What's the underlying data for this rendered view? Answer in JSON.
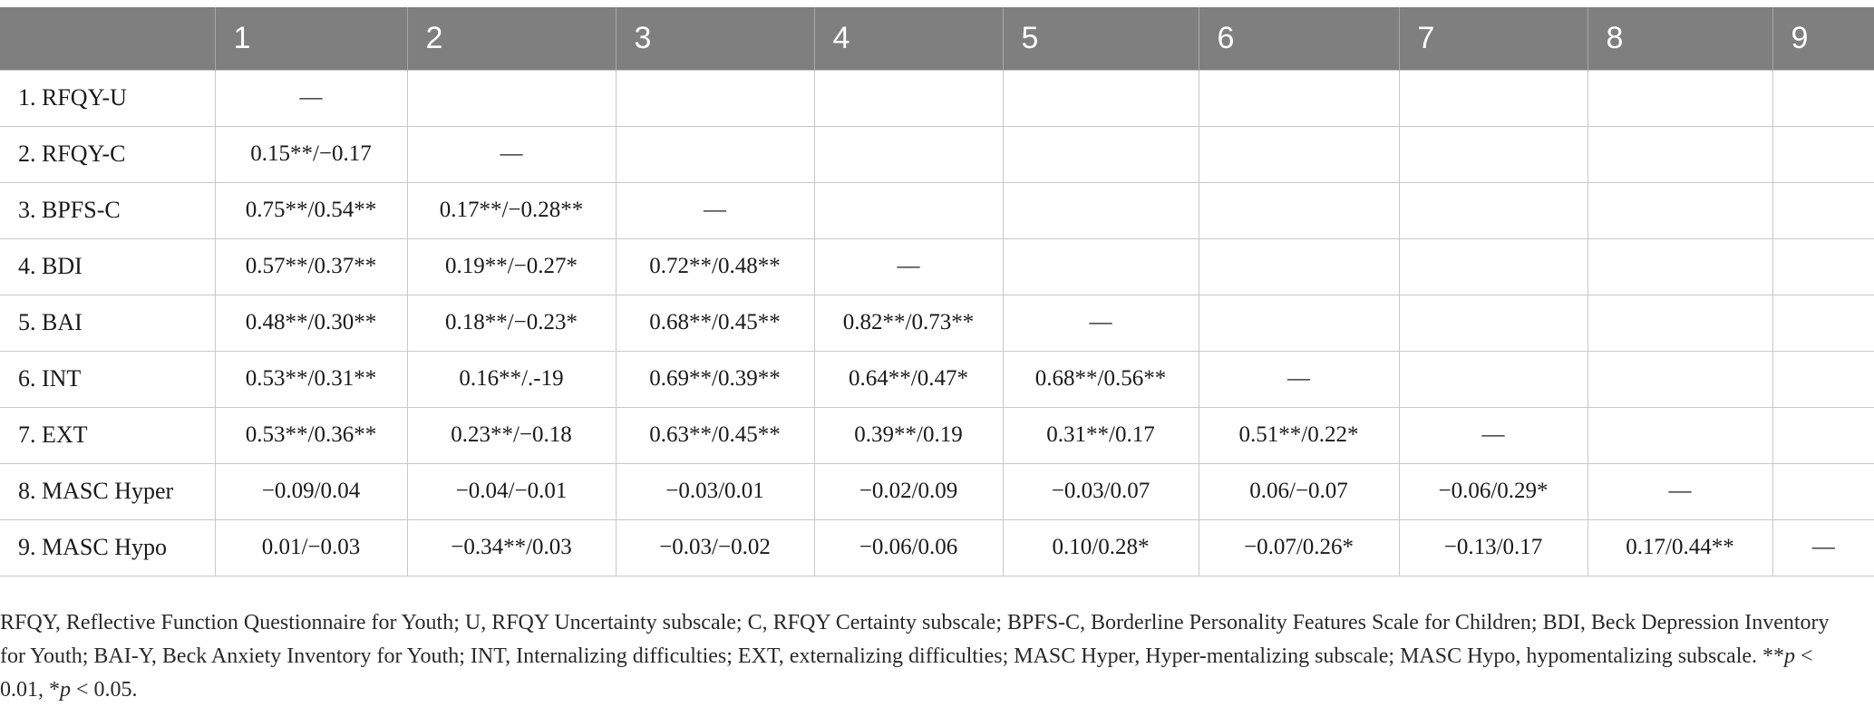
{
  "table": {
    "headers": [
      "",
      "1",
      "2",
      "3",
      "4",
      "5",
      "6",
      "7",
      "8",
      "9"
    ],
    "rows": [
      {
        "label": "1. RFQY-U",
        "cells": [
          "—",
          "",
          "",
          "",
          "",
          "",
          "",
          "",
          ""
        ]
      },
      {
        "label": "2. RFQY-C",
        "cells": [
          "0.15**/−0.17",
          "—",
          "",
          "",
          "",
          "",
          "",
          "",
          ""
        ]
      },
      {
        "label": "3. BPFS-C",
        "cells": [
          "0.75**/0.54**",
          "0.17**/−0.28**",
          "—",
          "",
          "",
          "",
          "",
          "",
          ""
        ]
      },
      {
        "label": "4. BDI",
        "cells": [
          "0.57**/0.37**",
          "0.19**/−0.27*",
          "0.72**/0.48**",
          "—",
          "",
          "",
          "",
          "",
          ""
        ]
      },
      {
        "label": "5. BAI",
        "cells": [
          "0.48**/0.30**",
          "0.18**/−0.23*",
          "0.68**/0.45**",
          "0.82**/0.73**",
          "—",
          "",
          "",
          "",
          ""
        ]
      },
      {
        "label": "6. INT",
        "cells": [
          "0.53**/0.31**",
          "0.16**/.-19",
          "0.69**/0.39**",
          "0.64**/0.47*",
          "0.68**/0.56**",
          "—",
          "",
          "",
          ""
        ]
      },
      {
        "label": "7. EXT",
        "cells": [
          "0.53**/0.36**",
          "0.23**/−0.18",
          "0.63**/0.45**",
          "0.39**/0.19",
          "0.31**/0.17",
          "0.51**/0.22*",
          "—",
          "",
          ""
        ]
      },
      {
        "label": "8. MASC Hyper",
        "cells": [
          "−0.09/0.04",
          "−0.04/−0.01",
          "−0.03/0.01",
          "−0.02/0.09",
          "−0.03/0.07",
          "0.06/−0.07",
          "−0.06/0.29*",
          "—",
          ""
        ]
      },
      {
        "label": "9. MASC Hypo",
        "cells": [
          "0.01/−0.03",
          "−0.34**/0.03",
          "−0.03/−0.02",
          "−0.06/0.06",
          "0.10/0.28*",
          "−0.07/0.26*",
          "−0.13/0.17",
          "0.17/0.44**",
          "—"
        ]
      }
    ]
  },
  "note": {
    "text": "RFQY, Reflective Function Questionnaire for Youth; U, RFQY Uncertainty subscale; C, RFQY Certainty subscale; BPFS-C, Borderline Personality Features Scale for Children; BDI, Beck Depression Inventory for Youth; BAI-Y, Beck Anxiety Inventory for Youth; INT, Internalizing difficulties; EXT, externalizing difficulties; MASC Hyper, Hyper-mentalizing subscale; MASC Hypo, hypomentalizing subscale.",
    "sig_double": "**",
    "p_symbol": "p",
    "sig_double_rest": " < 0.01, ",
    "sig_single": "*",
    "sig_single_rest": " < 0.05."
  }
}
